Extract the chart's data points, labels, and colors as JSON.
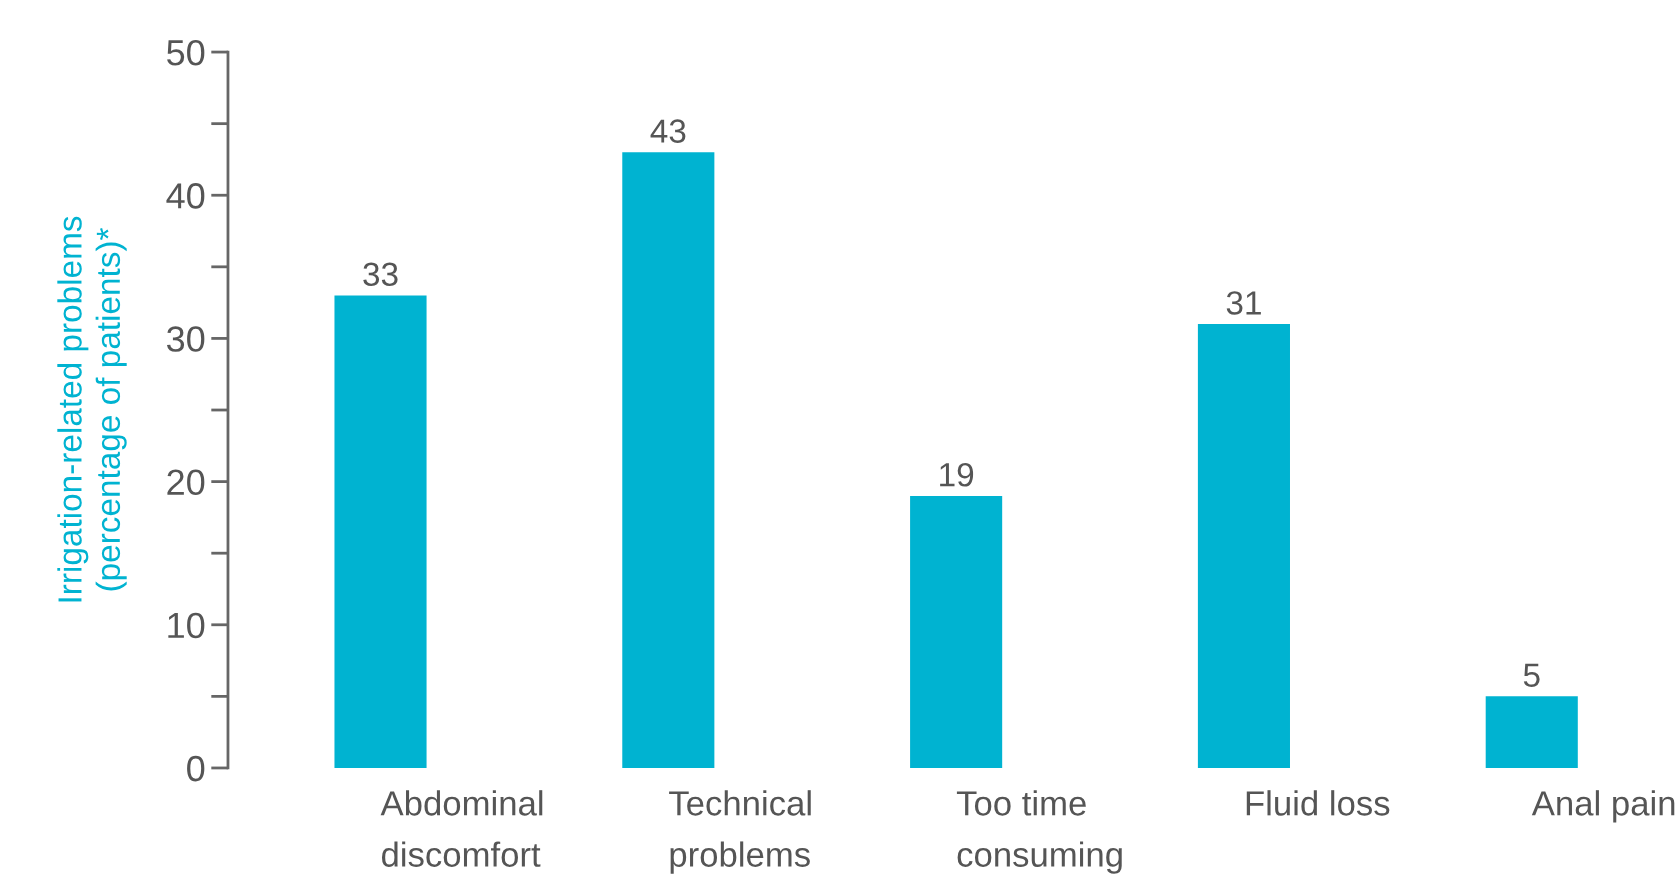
{
  "chart_data": {
    "type": "bar",
    "ylabel": "Irrigation-related problems\n(percentage of patients)*",
    "categories": [
      "Abdominal\ndiscomfort",
      "Technical\nproblems",
      "Too time\nconsuming",
      "Fluid loss",
      "Anal pain"
    ],
    "values": [
      33,
      43,
      19,
      31,
      5
    ],
    "color": "#00b3d1",
    "ylim": [
      0,
      50
    ],
    "yticks": [
      0,
      10,
      20,
      30,
      40,
      50
    ],
    "data_labels": true
  }
}
